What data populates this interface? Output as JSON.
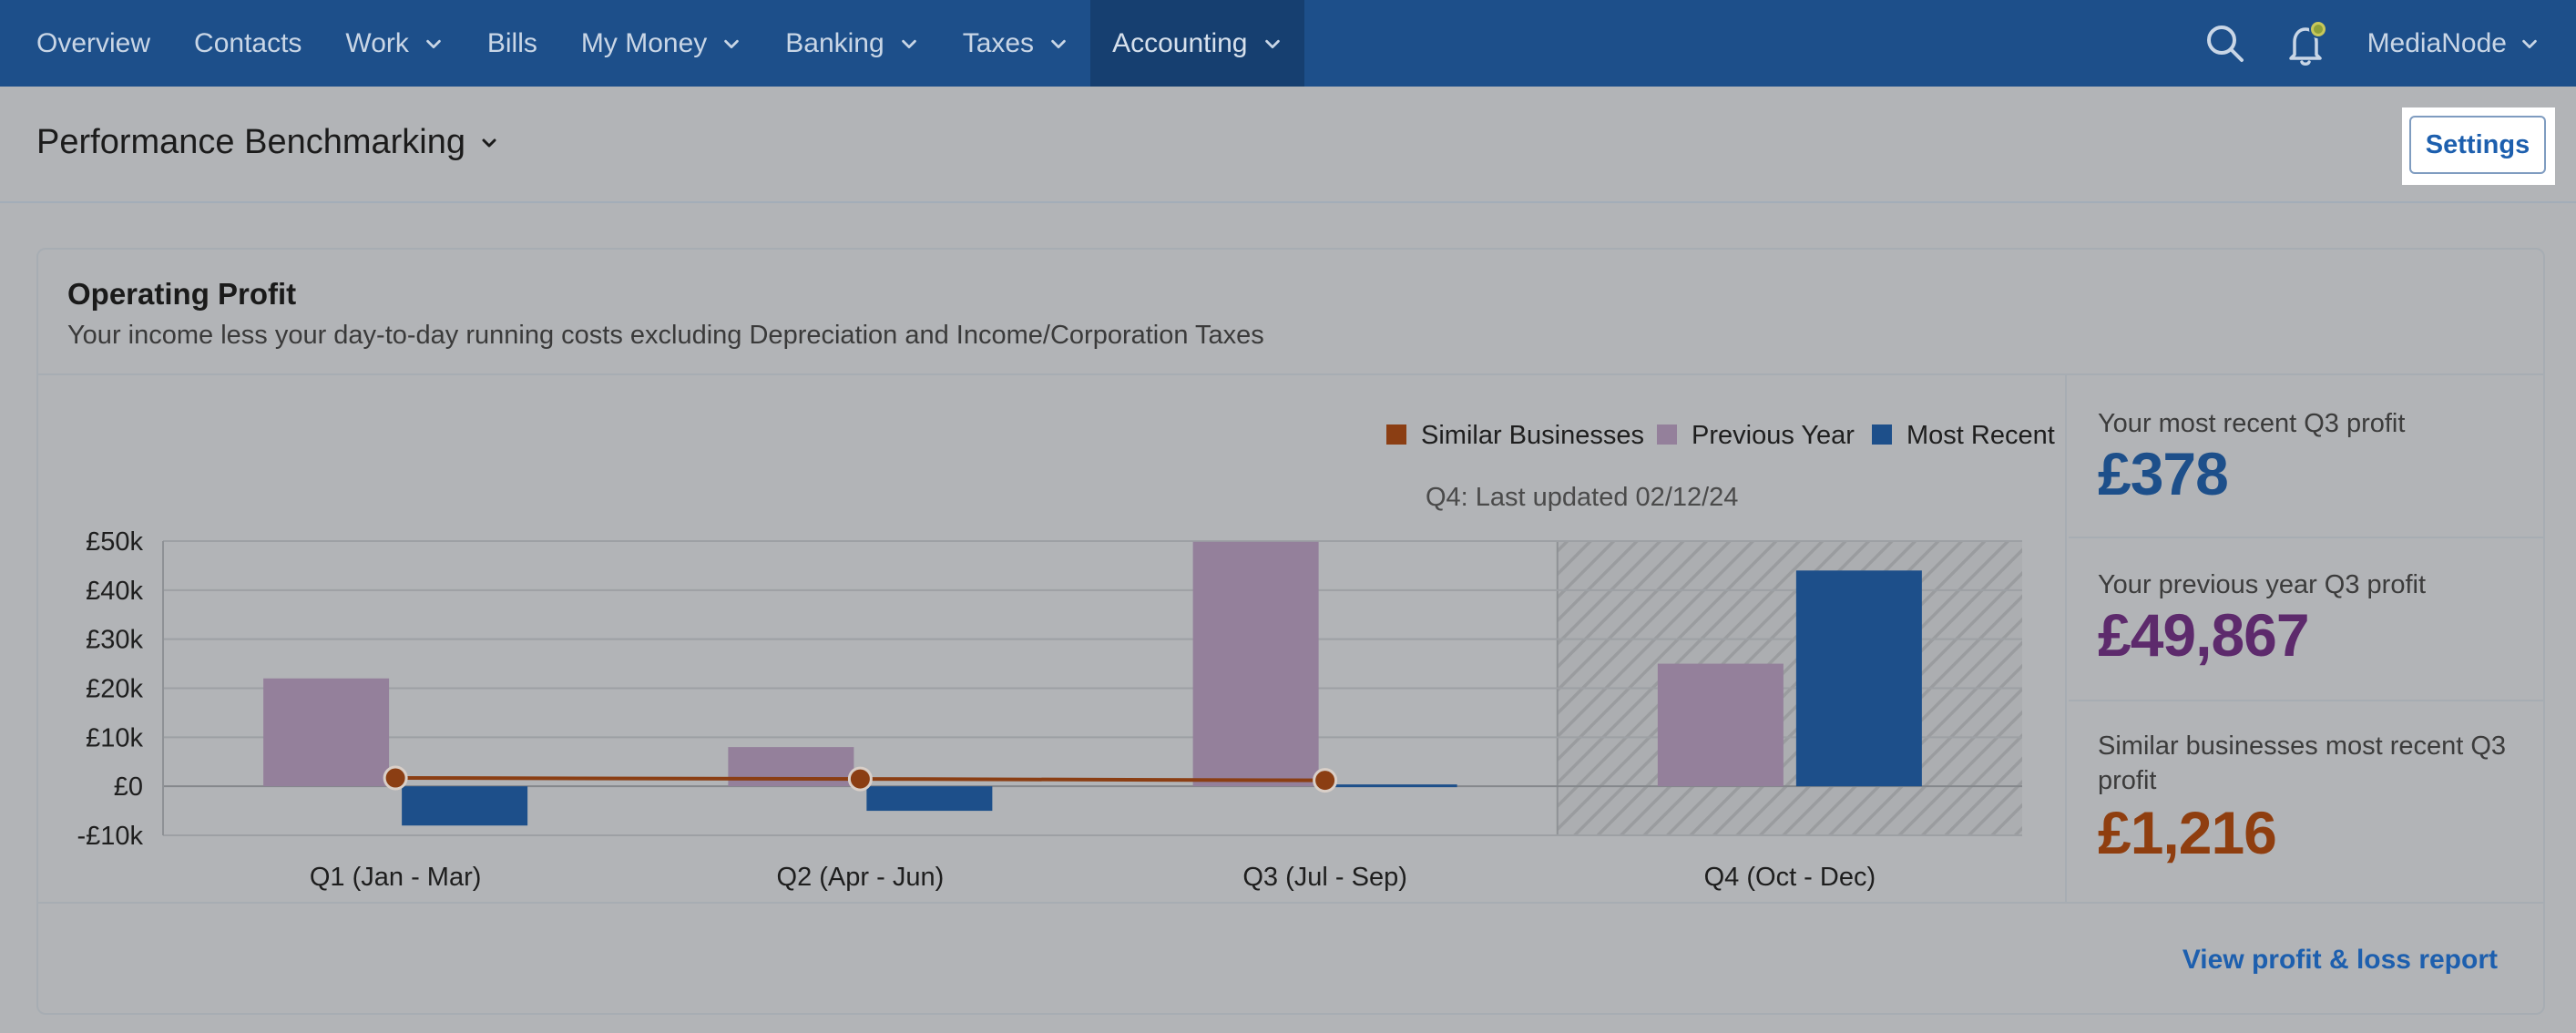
{
  "nav": {
    "items": [
      {
        "label": "Overview",
        "dropdown": false,
        "active": false
      },
      {
        "label": "Contacts",
        "dropdown": false,
        "active": false
      },
      {
        "label": "Work",
        "dropdown": true,
        "active": false
      },
      {
        "label": "Bills",
        "dropdown": false,
        "active": false
      },
      {
        "label": "My Money",
        "dropdown": true,
        "active": false
      },
      {
        "label": "Banking",
        "dropdown": true,
        "active": false
      },
      {
        "label": "Taxes",
        "dropdown": true,
        "active": false
      },
      {
        "label": "Accounting",
        "dropdown": true,
        "active": true
      }
    ],
    "org_name": "MediaNode",
    "icons": [
      "search-icon",
      "notification-bell-icon"
    ]
  },
  "header": {
    "title": "Performance Benchmarking",
    "settings_label": "Settings"
  },
  "card": {
    "title": "Operating Profit",
    "subtitle": "Your income less your day-to-day running costs excluding Depreciation and Income/Corporation Taxes",
    "footer_link": "View profit & loss report"
  },
  "stats": [
    {
      "label": "Your most recent Q3 profit",
      "value": "£378",
      "color": "#1d4f8a"
    },
    {
      "label": "Your previous year Q3 profit",
      "value": "£49,867",
      "color": "#5d2a6c"
    },
    {
      "label": "Similar businesses most recent Q3 profit",
      "value": "£1,216",
      "color": "#8f3e0f"
    }
  ],
  "chart_data": {
    "type": "bar",
    "categories": [
      "Q1 (Jan - Mar)",
      "Q2 (Apr - Jun)",
      "Q3 (Jul - Sep)",
      "Q4 (Oct - Dec)"
    ],
    "series": [
      {
        "name": "Previous Year",
        "type": "bar",
        "color": "#94809b",
        "values": [
          22000,
          8000,
          49867,
          25000
        ]
      },
      {
        "name": "Most Recent",
        "type": "bar",
        "color": "#1d4f8a",
        "values": [
          -8000,
          -5000,
          378,
          44000
        ]
      },
      {
        "name": "Similar Businesses",
        "type": "line",
        "color": "#8b3e13",
        "values": [
          1700,
          1500,
          1216,
          null
        ]
      }
    ],
    "legend_order": [
      "Similar Businesses",
      "Previous Year",
      "Most Recent"
    ],
    "legend_position": "top-right",
    "yticks": [
      50000,
      40000,
      30000,
      20000,
      10000,
      0,
      -10000
    ],
    "ytick_labels": [
      "£50k",
      "£40k",
      "£30k",
      "£20k",
      "£10k",
      "£0",
      "-£10k"
    ],
    "ylim": [
      -10000,
      50000
    ],
    "grid": true,
    "annotation": "Q4: Last updated 02/12/24",
    "hatched_category": "Q4 (Oct - Dec)"
  }
}
